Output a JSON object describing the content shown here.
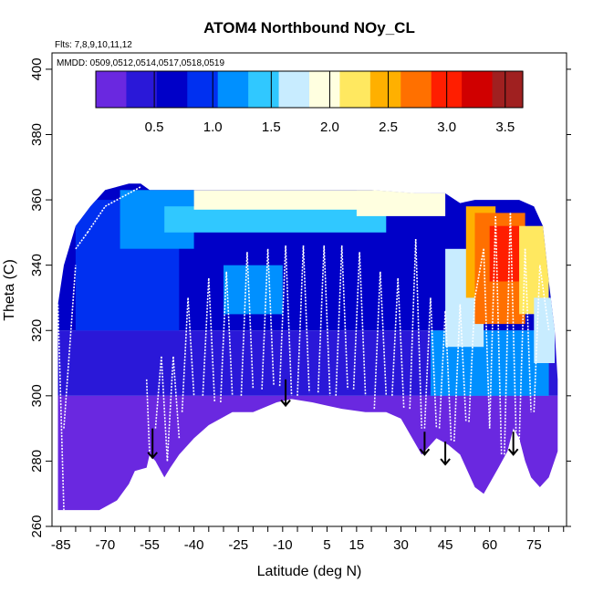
{
  "chart_data": {
    "type": "heatmap",
    "title": "ATOM4 Northbound NOy_CL",
    "flights_note": "Flts: 7,8,9,10,11,12",
    "dates_note": "MMDD: 0509,0512,0514,0517,0518,0519",
    "xlabel": "Latitude (deg N)",
    "ylabel": "Theta (C)",
    "xlim": [
      -88,
      86
    ],
    "ylim": [
      260,
      405
    ],
    "x_ticks": [
      -85,
      -70,
      -55,
      -40,
      -25,
      -10,
      5,
      15,
      30,
      45,
      60,
      75
    ],
    "y_ticks": [
      260,
      280,
      300,
      320,
      340,
      360,
      380,
      400
    ],
    "colorbar": {
      "range": [
        0.0,
        3.65
      ],
      "ticks": [
        0.5,
        1.0,
        1.5,
        2.0,
        2.5,
        3.0,
        3.5
      ],
      "tick_labels": [
        "0.5",
        "1.0",
        "1.5",
        "2.0",
        "2.5",
        "3.0",
        "3.5"
      ],
      "colors": [
        "#6a28e0",
        "#2a18d8",
        "#0000c8",
        "#0030f0",
        "#0090ff",
        "#30c8ff",
        "#c8ecff",
        "#ffffe0",
        "#ffe860",
        "#ffb000",
        "#ff7000",
        "#ff1e00",
        "#d00000",
        "#a02020"
      ]
    },
    "boundary_top": [
      [
        -86,
        328
      ],
      [
        -84,
        340
      ],
      [
        -80,
        352
      ],
      [
        -75,
        358
      ],
      [
        -70,
        363
      ],
      [
        -66,
        364
      ],
      [
        -62,
        365
      ],
      [
        -58,
        365
      ],
      [
        -55,
        363
      ],
      [
        -40,
        363
      ],
      [
        -20,
        363
      ],
      [
        0,
        363
      ],
      [
        20,
        363
      ],
      [
        35,
        362
      ],
      [
        45,
        362
      ],
      [
        50,
        359
      ],
      [
        55,
        360
      ],
      [
        62,
        360
      ],
      [
        70,
        360
      ],
      [
        75,
        358
      ],
      [
        78,
        352
      ],
      [
        80,
        335
      ],
      [
        82,
        320
      ],
      [
        83,
        305
      ]
    ],
    "boundary_bottom": [
      [
        83,
        283
      ],
      [
        80,
        275
      ],
      [
        77,
        272
      ],
      [
        74,
        275
      ],
      [
        72,
        280
      ],
      [
        70,
        287
      ],
      [
        68,
        290
      ],
      [
        66,
        283
      ],
      [
        63,
        278
      ],
      [
        58,
        270
      ],
      [
        55,
        272
      ],
      [
        50,
        282
      ],
      [
        46,
        285
      ],
      [
        42,
        287
      ],
      [
        37,
        282
      ],
      [
        30,
        293
      ],
      [
        25,
        295
      ],
      [
        18,
        295
      ],
      [
        10,
        296
      ],
      [
        5,
        297
      ],
      [
        0,
        298
      ],
      [
        -7,
        299
      ],
      [
        -12,
        298
      ],
      [
        -20,
        295
      ],
      [
        -27,
        295
      ],
      [
        -35,
        291
      ],
      [
        -40,
        287
      ],
      [
        -45,
        282
      ],
      [
        -48,
        278
      ],
      [
        -50,
        275
      ],
      [
        -53,
        280
      ],
      [
        -55,
        282
      ],
      [
        -56,
        278
      ],
      [
        -60,
        277
      ],
      [
        -62,
        273
      ],
      [
        -66,
        268
      ],
      [
        -72,
        265
      ],
      [
        -79,
        265
      ],
      [
        -84,
        265
      ],
      [
        -86,
        265
      ]
    ],
    "anomaly_zones": [
      {
        "lat": [
          -88,
          86
        ],
        "theta": [
          258,
          300
        ],
        "value": 0.2
      },
      {
        "lat": [
          -88,
          86
        ],
        "theta": [
          300,
          320
        ],
        "value": 0.45
      },
      {
        "lat": [
          -88,
          86
        ],
        "theta": [
          320,
          366
        ],
        "value": 0.7
      },
      {
        "lat": [
          -80,
          -45
        ],
        "theta": [
          320,
          360
        ],
        "value": 0.85
      },
      {
        "lat": [
          -65,
          -40
        ],
        "theta": [
          345,
          363
        ],
        "value": 1.1
      },
      {
        "lat": [
          -50,
          25
        ],
        "theta": [
          350,
          358
        ],
        "value": 1.35
      },
      {
        "lat": [
          -40,
          40
        ],
        "theta": [
          357,
          363
        ],
        "value": 1.85
      },
      {
        "lat": [
          15,
          45
        ],
        "theta": [
          355,
          363
        ],
        "value": 2.0
      },
      {
        "lat": [
          -30,
          -10
        ],
        "theta": [
          325,
          340
        ],
        "value": 1.05
      },
      {
        "lat": [
          40,
          80
        ],
        "theta": [
          300,
          320
        ],
        "value": 1.3
      },
      {
        "lat": [
          45,
          58
        ],
        "theta": [
          315,
          345
        ],
        "value": 1.6
      },
      {
        "lat": [
          52,
          62
        ],
        "theta": [
          330,
          358
        ],
        "value": 2.4
      },
      {
        "lat": [
          55,
          72
        ],
        "theta": [
          322,
          356
        ],
        "value": 2.7
      },
      {
        "lat": [
          60,
          70
        ],
        "theta": [
          335,
          352
        ],
        "value": 2.95
      },
      {
        "lat": [
          70,
          80
        ],
        "theta": [
          325,
          352
        ],
        "value": 2.25
      },
      {
        "lat": [
          75,
          82
        ],
        "theta": [
          310,
          330
        ],
        "value": 1.6
      }
    ],
    "profile_segments": [
      {
        "lat": [
          -86,
          -84
        ],
        "theta": [
          328,
          265
        ]
      },
      {
        "lat": [
          -84,
          -80
        ],
        "theta": [
          290,
          340
        ]
      },
      {
        "lat": [
          -80,
          -76
        ],
        "theta": [
          345,
          350
        ]
      },
      {
        "lat": [
          -76,
          -70
        ],
        "theta": [
          350,
          358
        ]
      },
      {
        "lat": [
          -70,
          -58
        ],
        "theta": [
          358,
          364
        ]
      },
      {
        "lat": [
          -56,
          -55
        ],
        "theta": [
          305,
          282
        ]
      },
      {
        "lat": [
          -53,
          -51
        ],
        "theta": [
          290,
          312
        ]
      },
      {
        "lat": [
          -51,
          -49
        ],
        "theta": [
          312,
          280
        ]
      },
      {
        "lat": [
          -49,
          -47
        ],
        "theta": [
          280,
          312
        ]
      },
      {
        "lat": [
          -47,
          -45
        ],
        "theta": [
          312,
          287
        ]
      },
      {
        "lat": [
          -44,
          -42
        ],
        "theta": [
          295,
          330
        ]
      },
      {
        "lat": [
          -42,
          -40
        ],
        "theta": [
          330,
          300
        ]
      },
      {
        "lat": [
          -37,
          -35
        ],
        "theta": [
          300,
          336
        ]
      },
      {
        "lat": [
          -35,
          -33
        ],
        "theta": [
          336,
          298
        ]
      },
      {
        "lat": [
          -31,
          -29
        ],
        "theta": [
          298,
          338
        ]
      },
      {
        "lat": [
          -29,
          -27
        ],
        "theta": [
          338,
          300
        ]
      },
      {
        "lat": [
          -24,
          -22
        ],
        "theta": [
          300,
          344
        ]
      },
      {
        "lat": [
          -22,
          -20
        ],
        "theta": [
          344,
          302
        ]
      },
      {
        "lat": [
          -17,
          -15
        ],
        "theta": [
          302,
          345
        ]
      },
      {
        "lat": [
          -15,
          -13
        ],
        "theta": [
          345,
          303
        ]
      },
      {
        "lat": [
          -11,
          -9
        ],
        "theta": [
          303,
          346
        ]
      },
      {
        "lat": [
          -9,
          -7
        ],
        "theta": [
          346,
          300
        ]
      },
      {
        "lat": [
          -5,
          -3
        ],
        "theta": [
          300,
          346
        ]
      },
      {
        "lat": [
          -3,
          -1
        ],
        "theta": [
          346,
          301
        ]
      },
      {
        "lat": [
          2,
          4
        ],
        "theta": [
          301,
          346
        ]
      },
      {
        "lat": [
          4,
          6
        ],
        "theta": [
          346,
          300
        ]
      },
      {
        "lat": [
          8,
          10
        ],
        "theta": [
          300,
          346
        ]
      },
      {
        "lat": [
          10,
          12
        ],
        "theta": [
          346,
          302
        ]
      },
      {
        "lat": [
          14,
          16
        ],
        "theta": [
          302,
          344
        ]
      },
      {
        "lat": [
          16,
          18
        ],
        "theta": [
          344,
          300
        ]
      },
      {
        "lat": [
          21,
          23
        ],
        "theta": [
          296,
          338
        ]
      },
      {
        "lat": [
          23,
          25
        ],
        "theta": [
          338,
          300
        ]
      },
      {
        "lat": [
          27,
          29
        ],
        "theta": [
          300,
          336
        ]
      },
      {
        "lat": [
          29,
          31
        ],
        "theta": [
          336,
          296
        ]
      },
      {
        "lat": [
          33,
          35
        ],
        "theta": [
          296,
          348
        ]
      },
      {
        "lat": [
          35,
          37
        ],
        "theta": [
          348,
          290
        ]
      },
      {
        "lat": [
          38,
          40
        ],
        "theta": [
          290,
          330
        ]
      },
      {
        "lat": [
          40,
          42
        ],
        "theta": [
          330,
          290
        ]
      },
      {
        "lat": [
          43,
          45
        ],
        "theta": [
          290,
          326
        ]
      },
      {
        "lat": [
          45,
          47
        ],
        "theta": [
          326,
          286
        ]
      },
      {
        "lat": [
          48,
          50
        ],
        "theta": [
          286,
          328
        ]
      },
      {
        "lat": [
          50,
          52
        ],
        "theta": [
          328,
          292
        ]
      },
      {
        "lat": [
          53,
          55
        ],
        "theta": [
          292,
          330
        ]
      },
      {
        "lat": [
          55,
          58
        ],
        "theta": [
          330,
          345
        ]
      },
      {
        "lat": [
          58,
          60
        ],
        "theta": [
          345,
          290
        ]
      },
      {
        "lat": [
          60,
          62
        ],
        "theta": [
          290,
          355
        ]
      },
      {
        "lat": [
          62,
          64
        ],
        "theta": [
          355,
          282
        ]
      },
      {
        "lat": [
          65,
          67
        ],
        "theta": [
          282,
          356
        ]
      },
      {
        "lat": [
          67,
          69
        ],
        "theta": [
          356,
          286
        ]
      },
      {
        "lat": [
          70,
          72
        ],
        "theta": [
          286,
          345
        ]
      },
      {
        "lat": [
          72,
          74
        ],
        "theta": [
          345,
          295
        ]
      },
      {
        "lat": [
          75,
          77
        ],
        "theta": [
          295,
          340
        ]
      },
      {
        "lat": [
          77,
          80
        ],
        "theta": [
          340,
          320
        ]
      }
    ],
    "arrows": [
      {
        "lat": -54,
        "theta_from": 290,
        "theta_to": 281
      },
      {
        "lat": -9,
        "theta_from": 305,
        "theta_to": 297
      },
      {
        "lat": 38,
        "theta_from": 289,
        "theta_to": 282
      },
      {
        "lat": 45,
        "theta_from": 286,
        "theta_to": 279
      },
      {
        "lat": 68,
        "theta_from": 289,
        "theta_to": 282
      }
    ]
  }
}
